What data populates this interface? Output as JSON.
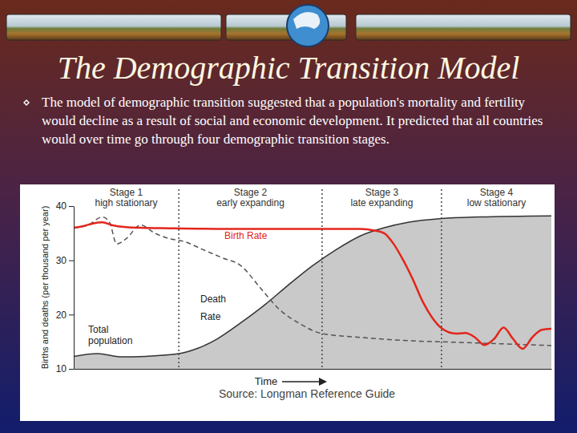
{
  "chart_data": {
    "type": "line",
    "title": "The Demographic Transition Model",
    "subtitle": "The model of demographic transition suggested that a population's mortality and fertility would decline as a result of social and economic development. It predicted that all countries would over time go through four demographic transition stages.",
    "y_label": "Births and deaths (per thousand per year)",
    "x_label": "Time",
    "source": "Source: Longman Reference Guide",
    "xlim": [
      0,
      100
    ],
    "xticks": [],
    "ylim": [
      10,
      40
    ],
    "yticks": [
      10,
      20,
      30,
      40
    ],
    "tick_labels": "y",
    "stages": [
      {
        "name": "Stage 1",
        "label": "high stationary",
        "start": 0,
        "end": 22
      },
      {
        "name": "Stage 2",
        "label": "early expanding",
        "start": 22,
        "end": 52
      },
      {
        "name": "Stage 3",
        "label": "late expanding",
        "start": 52,
        "end": 77
      },
      {
        "name": "Stage 4",
        "label": "low stationary",
        "start": 77,
        "end": 100
      }
    ],
    "series": [
      {
        "name": "Total population",
        "type": "area",
        "color": "#c9c9c9",
        "x": [
          0,
          5,
          10,
          15,
          22,
          26,
          30,
          35,
          40,
          45,
          50,
          55,
          60,
          65,
          70,
          77,
          85,
          100
        ],
        "values": [
          12.3,
          12.8,
          12.2,
          12.3,
          12.8,
          13.8,
          15.5,
          18.5,
          21.8,
          25.5,
          29,
          32,
          34.5,
          36,
          37,
          37.7,
          38,
          38.2
        ]
      },
      {
        "name": "Death Rate",
        "type": "line",
        "color": "#555555",
        "line_style": "dashed",
        "x": [
          0,
          3,
          6,
          7.5,
          9,
          11,
          14,
          17,
          20,
          23,
          27,
          31,
          35,
          39,
          43,
          47,
          52,
          60,
          70,
          80,
          90,
          100
        ],
        "values": [
          36,
          36.5,
          38,
          37,
          33,
          34,
          36.5,
          35,
          34,
          33.5,
          32,
          30.5,
          29,
          25,
          21,
          18.5,
          16.5,
          15.8,
          15.2,
          14.9,
          14.6,
          14.3
        ]
      },
      {
        "name": "Birth Rate",
        "type": "line",
        "color": "#e3261c",
        "line_style": "solid",
        "x": [
          0,
          2,
          4,
          6,
          8,
          10,
          14,
          20,
          30,
          40,
          50,
          60,
          63,
          65,
          67,
          69,
          71,
          73,
          75,
          77,
          80,
          82,
          84,
          86,
          88,
          90,
          92,
          94,
          96,
          98,
          100
        ],
        "values": [
          36,
          36.3,
          36.8,
          37,
          36.5,
          36.2,
          36,
          35.9,
          35.8,
          35.8,
          35.8,
          35.8,
          35.5,
          35,
          33,
          30,
          26.5,
          22.5,
          19.5,
          17.5,
          16.5,
          16.6,
          15.8,
          14.4,
          15.5,
          17.6,
          15.5,
          13.7,
          15.8,
          17.2,
          17.4
        ]
      }
    ]
  }
}
